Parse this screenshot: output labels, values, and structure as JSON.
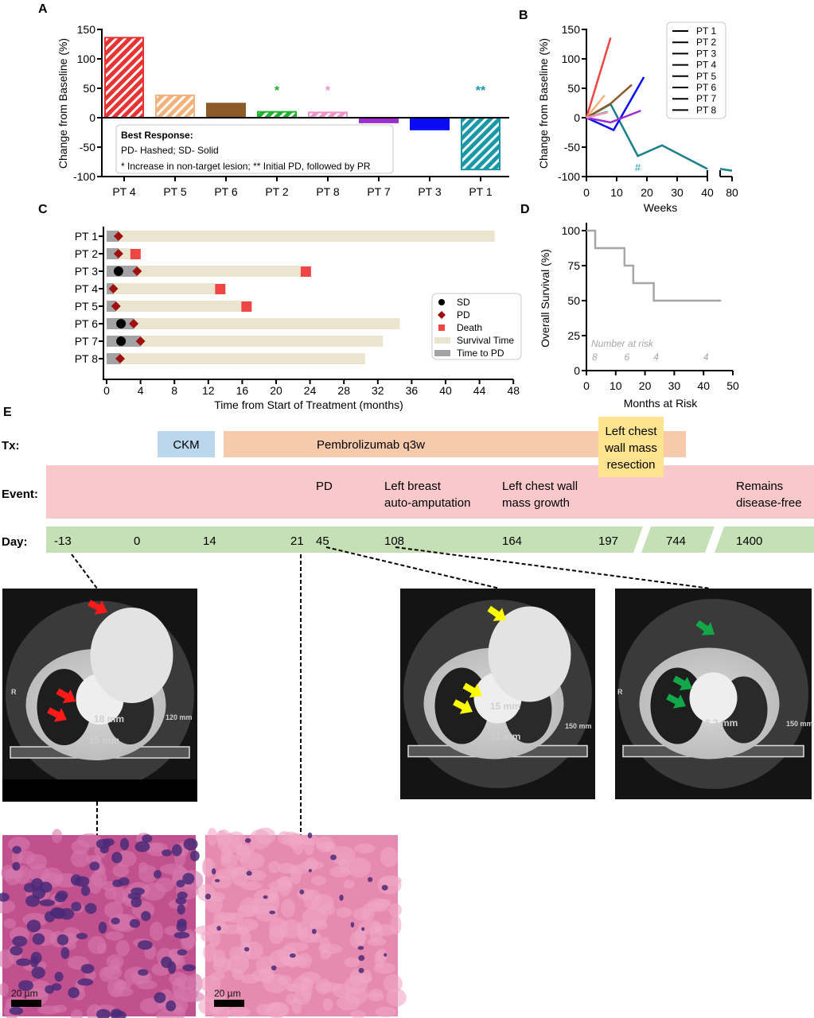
{
  "panel_labels": [
    "A",
    "B",
    "C",
    "D",
    "E"
  ],
  "chart_data": [
    {
      "type": "bar",
      "ylabel": "Change from  Baseline (%)",
      "ylim": [
        -100,
        150
      ],
      "yticks": [
        "150",
        "100",
        "50",
        "0",
        "-50",
        "-100"
      ],
      "categories": [
        "PT 4",
        "PT 5",
        "PT 6",
        "PT 2",
        "PT 8",
        "PT 7",
        "PT 3",
        "PT 1"
      ],
      "values": [
        136,
        38,
        24,
        10,
        9,
        -8,
        -20,
        -88
      ],
      "hatched": [
        true,
        true,
        false,
        true,
        true,
        false,
        false,
        true
      ],
      "colors": [
        "#e83333",
        "#f2b27c",
        "#8c5a28",
        "#22b02e",
        "#f294c8",
        "#9b2fd0",
        "#0a0af5",
        "#1a98a8"
      ],
      "annotations": [
        {
          "category_index": 3,
          "text": "*",
          "y": 50
        },
        {
          "category_index": 4,
          "text": "*",
          "y": 50
        },
        {
          "category_index": 7,
          "text": "**",
          "y": 50
        }
      ],
      "legend": {
        "title": "Best  Response:",
        "lines": [
          "PD- Hashed; SD- Solid",
          "* Increase in non-target lesion; ** Initial PD, followed by PR"
        ]
      }
    },
    {
      "type": "line",
      "xlabel": "Weeks",
      "ylabel": "Change from Baseline (%)",
      "ylim": [
        -100,
        150
      ],
      "yticks": [
        "150",
        "100",
        "50",
        "0",
        "-50",
        "-100"
      ],
      "xticks": [
        "0",
        "10",
        "20",
        "30",
        "40",
        "80"
      ],
      "x_axis_break": [
        40,
        60
      ],
      "legend_position": "top-right",
      "series": [
        {
          "name": "PT 1",
          "color": "#1a7f8a",
          "x": [
            0,
            8,
            17,
            25,
            40,
            60,
            80
          ],
          "y": [
            0,
            23,
            -65,
            -47,
            -87,
            -87,
            -90
          ]
        },
        {
          "name": "PT 2",
          "color": "#22b02e",
          "x": [
            0,
            7
          ],
          "y": [
            0,
            10
          ]
        },
        {
          "name": "PT 3",
          "color": "#0a0af5",
          "x": [
            0,
            9,
            19
          ],
          "y": [
            0,
            -21,
            69
          ]
        },
        {
          "name": "PT 4",
          "color": "#ee4444",
          "x": [
            0,
            8
          ],
          "y": [
            0,
            136
          ]
        },
        {
          "name": "PT 5",
          "color": "#f2b27c",
          "x": [
            0,
            6
          ],
          "y": [
            0,
            38
          ]
        },
        {
          "name": "PT 6",
          "color": "#8c5a28",
          "x": [
            0,
            8,
            15
          ],
          "y": [
            0,
            24,
            56
          ]
        },
        {
          "name": "PT 7",
          "color": "#9b2fd0",
          "x": [
            0,
            8,
            18
          ],
          "y": [
            0,
            -8,
            12
          ]
        },
        {
          "name": "PT 8",
          "color": "#f294c8",
          "x": [
            0,
            7
          ],
          "y": [
            0,
            9
          ]
        }
      ],
      "annotation": {
        "text": "#",
        "x": 17,
        "y": -85,
        "color": "#1a98a8"
      }
    },
    {
      "type": "bar",
      "orientation": "horizontal",
      "xlabel": "Time from Start of Treatment (months)",
      "xlim": [
        0,
        48
      ],
      "xticks": [
        "0",
        "4",
        "8",
        "12",
        "16",
        "20",
        "24",
        "28",
        "32",
        "36",
        "40",
        "44",
        "48"
      ],
      "rows": [
        "PT 1",
        "PT 2",
        "PT 3",
        "PT 4",
        "PT 5",
        "PT 6",
        "PT 7",
        "PT 8"
      ],
      "survival_time": [
        45.8,
        2.8,
        22.9,
        12.8,
        15.9,
        34.6,
        32.6,
        30.5
      ],
      "time_to_pd": [
        1.4,
        1.4,
        3.6,
        0.8,
        1.1,
        3.2,
        4.0,
        1.6
      ],
      "sd": [
        null,
        null,
        1.4,
        null,
        null,
        1.7,
        1.7,
        null
      ],
      "death": [
        null,
        2.8,
        22.9,
        12.8,
        15.9,
        null,
        null,
        null
      ],
      "colors": {
        "survival": "#ebe5d0",
        "time_to_pd": "#a3a3a6",
        "sd": "#000000",
        "pd": "#a01010",
        "death": "#ee4545"
      },
      "legend": [
        "SD",
        "PD",
        "Death",
        "Survival Time",
        "Time to PD"
      ],
      "legend_position": "right"
    },
    {
      "type": "line",
      "step": true,
      "xlabel": "Months at Risk",
      "ylabel": "Overall Survival (%)",
      "xlim": [
        0,
        50
      ],
      "ylim": [
        0,
        100
      ],
      "xticks": [
        "0",
        "10",
        "20",
        "30",
        "40",
        "50"
      ],
      "yticks": [
        "100",
        "75",
        "50",
        "25",
        "0"
      ],
      "x": [
        0,
        3,
        3,
        13,
        13,
        16,
        16,
        23,
        23,
        46
      ],
      "y": [
        100,
        100,
        87.5,
        87.5,
        75,
        75,
        62.5,
        62.5,
        50,
        50
      ],
      "color": "#a6a6a6",
      "risk_title": "Number at risk",
      "risk_months": [
        2,
        13,
        23,
        40
      ],
      "risk_values": [
        "8",
        "6",
        "4",
        "4"
      ]
    }
  ],
  "timeline": {
    "row_labels": {
      "tx": "Tx:",
      "event": "Event:",
      "day": "Day:"
    },
    "tx": [
      {
        "label": "CKM",
        "color": "#bad7ee"
      },
      {
        "label": "Pembrolizumab q3w",
        "color": "#f6caaa"
      },
      {
        "label_lines": [
          "Left chest",
          "wall mass",
          "resection"
        ],
        "color": "#fde38e"
      }
    ],
    "events": [
      {
        "lines": [
          "PD"
        ]
      },
      {
        "lines": [
          "Left breast",
          "auto-amputation"
        ]
      },
      {
        "lines": [
          "Left chest wall",
          "mass growth"
        ]
      },
      {
        "lines": [
          "Remains",
          "disease-free"
        ]
      }
    ],
    "event_color": "#f9c8cb",
    "days": [
      "-13",
      "0",
      "14",
      "21",
      "45",
      "108",
      "164",
      "197",
      "744",
      "1400"
    ],
    "day_color": "#c6e0b5"
  },
  "images": {
    "ct_scans": [
      {
        "arrow_color": "#ff1a1a",
        "labels": [
          "R",
          "18 mm",
          "15 mm",
          "120 mm"
        ]
      },
      {
        "arrow_color": "#ffff00",
        "labels": [
          "15 mm",
          "11 mm",
          "150 mm"
        ]
      },
      {
        "arrow_color": "#12a84a",
        "labels": [
          "R",
          "8.2 mm",
          "150 mm"
        ]
      }
    ],
    "histology": [
      {
        "scale_bar": "20 µm"
      },
      {
        "scale_bar": "20 µm"
      }
    ]
  }
}
